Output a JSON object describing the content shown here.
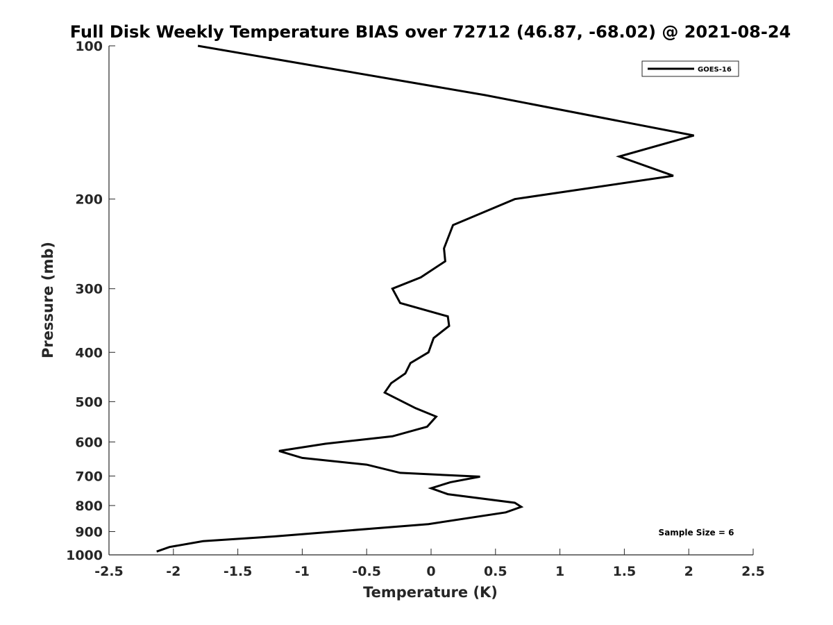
{
  "chart_data": {
    "type": "line",
    "title": "Full Disk Weekly Temperature BIAS over 72712 (46.87, -68.02) @ 2021-08-24",
    "xlabel": "Temperature (K)",
    "ylabel": "Pressure (mb)",
    "xlim": [
      -2.5,
      2.5
    ],
    "ylim": [
      100,
      1000
    ],
    "y_scale": "log",
    "y_reversed": true,
    "x_ticks": [
      -2.5,
      -2,
      -1.5,
      -1,
      -0.5,
      0,
      0.5,
      1,
      1.5,
      2,
      2.5
    ],
    "x_tick_labels": [
      "-2.5",
      "-2",
      "-1.5",
      "-1",
      "-0.5",
      "0",
      "0.5",
      "1",
      "1.5",
      "2",
      "2.5"
    ],
    "y_ticks": [
      100,
      200,
      300,
      400,
      500,
      600,
      700,
      800,
      900,
      1000
    ],
    "y_tick_labels": [
      "100",
      "200",
      "300",
      "400",
      "500",
      "600",
      "700",
      "800",
      "900",
      "1000"
    ],
    "grid": false,
    "legend_position": "top-right",
    "annotation": "Sample Size = 6",
    "series": [
      {
        "name": "GOES-16",
        "color": "#000000",
        "points": [
          {
            "t": -1.81,
            "p": 100
          },
          {
            "t": 0.42,
            "p": 125
          },
          {
            "t": 2.04,
            "p": 150
          },
          {
            "t": 1.46,
            "p": 165
          },
          {
            "t": 1.88,
            "p": 180
          },
          {
            "t": 0.65,
            "p": 200
          },
          {
            "t": 0.17,
            "p": 225
          },
          {
            "t": 0.1,
            "p": 250
          },
          {
            "t": 0.11,
            "p": 265
          },
          {
            "t": -0.08,
            "p": 285
          },
          {
            "t": -0.3,
            "p": 300
          },
          {
            "t": -0.24,
            "p": 320
          },
          {
            "t": 0.13,
            "p": 340
          },
          {
            "t": 0.14,
            "p": 355
          },
          {
            "t": 0.02,
            "p": 375
          },
          {
            "t": -0.02,
            "p": 400
          },
          {
            "t": -0.16,
            "p": 420
          },
          {
            "t": -0.2,
            "p": 440
          },
          {
            "t": -0.31,
            "p": 460
          },
          {
            "t": -0.36,
            "p": 480
          },
          {
            "t": -0.12,
            "p": 515
          },
          {
            "t": 0.04,
            "p": 535
          },
          {
            "t": -0.03,
            "p": 560
          },
          {
            "t": -0.3,
            "p": 585
          },
          {
            "t": -0.82,
            "p": 605
          },
          {
            "t": -1.18,
            "p": 625
          },
          {
            "t": -1.0,
            "p": 645
          },
          {
            "t": -0.5,
            "p": 665
          },
          {
            "t": -0.24,
            "p": 690
          },
          {
            "t": 0.38,
            "p": 702
          },
          {
            "t": 0.15,
            "p": 720
          },
          {
            "t": 0.0,
            "p": 740
          },
          {
            "t": 0.13,
            "p": 760
          },
          {
            "t": 0.65,
            "p": 790
          },
          {
            "t": 0.7,
            "p": 805
          },
          {
            "t": 0.58,
            "p": 825
          },
          {
            "t": -0.02,
            "p": 870
          },
          {
            "t": -1.22,
            "p": 920
          },
          {
            "t": -1.77,
            "p": 940
          },
          {
            "t": -2.03,
            "p": 965
          },
          {
            "t": -2.13,
            "p": 985
          }
        ]
      }
    ]
  }
}
